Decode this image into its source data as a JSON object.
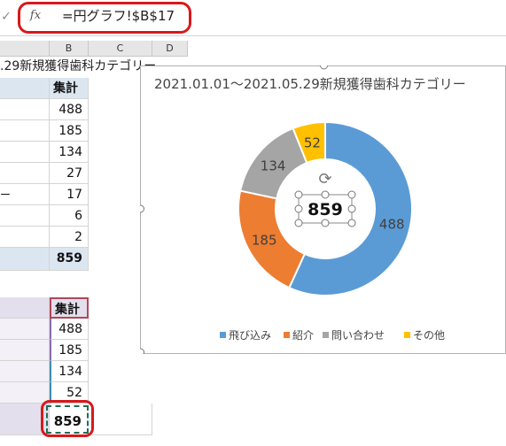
{
  "formula_bar": {
    "check_glyph": "✓",
    "fx_label": "fx",
    "formula": "=円グラフ!$B$17"
  },
  "sheet": {
    "col_b": "B",
    "col_c": "C",
    "col_d": "D",
    "title_text": ".29新規獲得歯科カテゴリー",
    "table1": {
      "header": "集計",
      "row_a_dash": "ー",
      "values": [
        "488",
        "185",
        "134",
        "27",
        "17",
        "6",
        "2"
      ],
      "total": "859"
    },
    "table2": {
      "header": "集計",
      "values": [
        "488",
        "185",
        "134",
        "52"
      ],
      "total": "859"
    }
  },
  "chart_data": {
    "type": "pie",
    "donut": true,
    "title": "2021.01.01～2021.05.29新規獲得歯科カテゴリー",
    "center_label": "859",
    "slices": [
      {
        "name": "飛び込み",
        "value": 488,
        "color": "#5b9bd5"
      },
      {
        "name": "紹介",
        "value": 185,
        "color": "#ed7d31"
      },
      {
        "name": "問い合わせ",
        "value": 134,
        "color": "#a5a5a5"
      },
      {
        "name": "その他",
        "value": 52,
        "color": "#ffc000"
      }
    ],
    "legend_position": "bottom"
  }
}
